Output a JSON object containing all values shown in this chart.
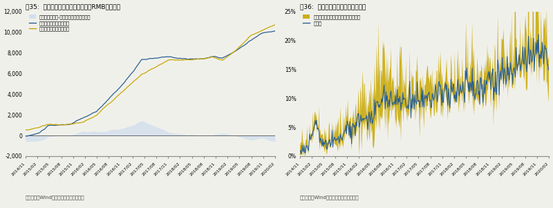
{
  "fig1": {
    "title": "图35:  南下北上资金净买入（单位亿RMB，下同）",
    "legend": [
      "南下累计净流入-北上累计净流入（亿元）",
      "南下累计净买入（亿元）",
      "北上累计净买入（亿元）"
    ],
    "ylim": [
      -2000,
      12000
    ],
    "yticks": [
      -2000,
      0,
      2000,
      4000,
      6000,
      8000,
      10000,
      12000
    ],
    "fill_color": "#c5d8f0",
    "line1_color": "#2a5f8f",
    "line2_color": "#c8a800",
    "source": "数据来源：Wind，广发证券发展研究中心"
  },
  "fig2": {
    "title": "图36:  港股通成交占总成交比例变化",
    "legend1": "港股成交额中南向资金参与比例上下限",
    "legend2": "估算值",
    "fill_color": "#c8a800",
    "line_color": "#2a5f8f",
    "ylim": [
      0,
      0.25
    ],
    "yticks": [
      0,
      0.05,
      0.1,
      0.15,
      0.2,
      0.25
    ],
    "source": "数据来源：Wind，广发证券发展研究中心"
  },
  "xtick_labels": [
    "2014/11",
    "2015/02",
    "2015/05",
    "2015/08",
    "2015/11",
    "2016/02",
    "2016/05",
    "2016/08",
    "2016/11",
    "2017/02",
    "2017/05",
    "2017/08",
    "2017/11",
    "2018/02",
    "2018/05",
    "2018/08",
    "2018/11",
    "2019/02",
    "2019/05",
    "2019/08",
    "2019/11",
    "2020/02"
  ],
  "bg_color": "#f0f0eb"
}
